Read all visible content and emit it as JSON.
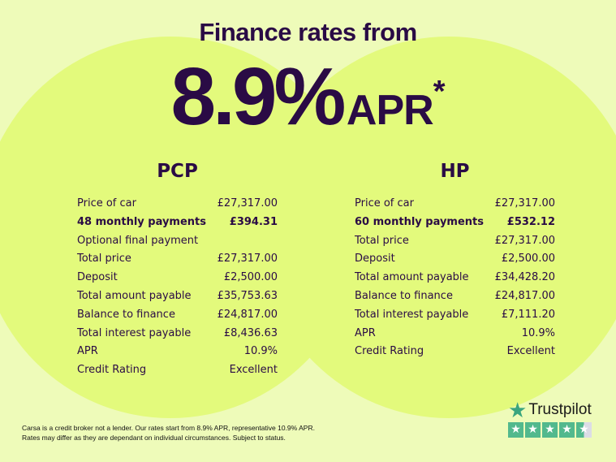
{
  "headline": {
    "title": "Finance rates from",
    "rate": "8.9%",
    "apr": "APR",
    "asterisk": "*"
  },
  "pcp": {
    "heading": "PCP",
    "rows": [
      {
        "label": "Price of car",
        "value": "£27,317.00",
        "bold": false
      },
      {
        "label": "48 monthly payments",
        "value": "£394.31",
        "bold": true
      },
      {
        "label": "Optional final payment",
        "value": "",
        "bold": false
      },
      {
        "label": "Total price",
        "value": "£27,317.00",
        "bold": false
      },
      {
        "label": "Deposit",
        "value": "£2,500.00",
        "bold": false
      },
      {
        "label": "Total amount payable",
        "value": "£35,753.63",
        "bold": false
      },
      {
        "label": "Balance to finance",
        "value": "£24,817.00",
        "bold": false
      },
      {
        "label": "Total interest payable",
        "value": "£8,436.63",
        "bold": false
      },
      {
        "label": "APR",
        "value": "10.9%",
        "bold": false
      },
      {
        "label": "Credit Rating",
        "value": "Excellent",
        "bold": false
      }
    ]
  },
  "hp": {
    "heading": "HP",
    "rows": [
      {
        "label": "Price of car",
        "value": "£27,317.00",
        "bold": false
      },
      {
        "label": "60 monthly payments",
        "value": "£532.12",
        "bold": true
      },
      {
        "label": "Total price",
        "value": "£27,317.00",
        "bold": false
      },
      {
        "label": "Deposit",
        "value": "£2,500.00",
        "bold": false
      },
      {
        "label": "Total amount payable",
        "value": "£34,428.20",
        "bold": false
      },
      {
        "label": "Balance to finance",
        "value": "£24,817.00",
        "bold": false
      },
      {
        "label": "Total interest payable",
        "value": "£7,111.20",
        "bold": false
      },
      {
        "label": "APR",
        "value": "10.9%",
        "bold": false
      },
      {
        "label": "Credit Rating",
        "value": "Excellent",
        "bold": false
      }
    ]
  },
  "disclaimer": {
    "line1": "Carsa is a credit broker not a lender. Our rates start from 8.9% APR, representative 10.9% APR.",
    "line2": "Rates may differ as they are dependant on individual circumstances. Subject to status."
  },
  "trustpilot": {
    "brand": "Trustpilot",
    "rating_stars": 4.5,
    "max_stars": 5,
    "icon": "star-icon"
  },
  "colors": {
    "text": "#2a0b45",
    "background": "#eefbb9",
    "circle": "#e3fa7c",
    "trustpilot_green": "#52b98d"
  }
}
